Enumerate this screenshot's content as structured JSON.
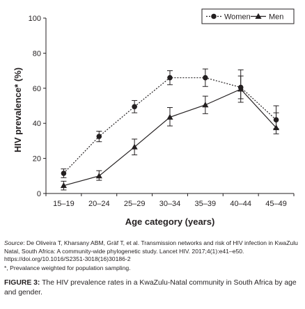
{
  "chart_data": {
    "type": "line",
    "xlabel": "Age category (years)",
    "ylabel": "HIV prevalence* (%)",
    "categories": [
      "15–19",
      "20–24",
      "25–29",
      "30–34",
      "35–39",
      "40–44",
      "45–49"
    ],
    "yticks": [
      0,
      20,
      40,
      60,
      80,
      100
    ],
    "ylim": [
      0,
      100
    ],
    "grid": false,
    "legend_position": "top-right",
    "series": [
      {
        "name": "Women",
        "line_style": "dotted",
        "marker": "circle",
        "values": [
          11.5,
          32.5,
          49.5,
          66.0,
          66.0,
          60.5,
          42.0
        ],
        "error_low": [
          9.0,
          29.5,
          46.0,
          62.0,
          61.0,
          54.0,
          37.0
        ],
        "error_high": [
          14.0,
          35.5,
          53.0,
          70.0,
          71.0,
          70.5,
          50.0
        ]
      },
      {
        "name": "Men",
        "line_style": "solid",
        "marker": "triangle",
        "values": [
          4.5,
          10.0,
          26.5,
          43.5,
          50.5,
          59.5,
          37.5
        ],
        "error_low": [
          2.0,
          7.5,
          22.0,
          38.5,
          45.5,
          52.0,
          34.0
        ],
        "error_high": [
          7.0,
          13.0,
          31.0,
          49.0,
          55.5,
          67.0,
          46.0
        ]
      }
    ]
  },
  "colors": {
    "line": "#231f20",
    "background": "#ffffff"
  },
  "source": {
    "label": "Source",
    "text": ": De Oliveira T, Kharsany ABM, Gräf T, et al. Transmission networks and risk of HIV infection in KwaZulu Natal, South Africa: A community-wide phylogenetic study. Lancet HIV. 2017;4(1):e41–e50. https://doi.org/10.1016/S2351-3018(16)30186-2"
  },
  "footnote": "*, Prevalance weighted for population sampling.",
  "figure": {
    "label": "FIGURE 3:",
    "text": " The HIV prevalence rates in a KwaZulu-Natal community in South Africa by age and gender."
  }
}
